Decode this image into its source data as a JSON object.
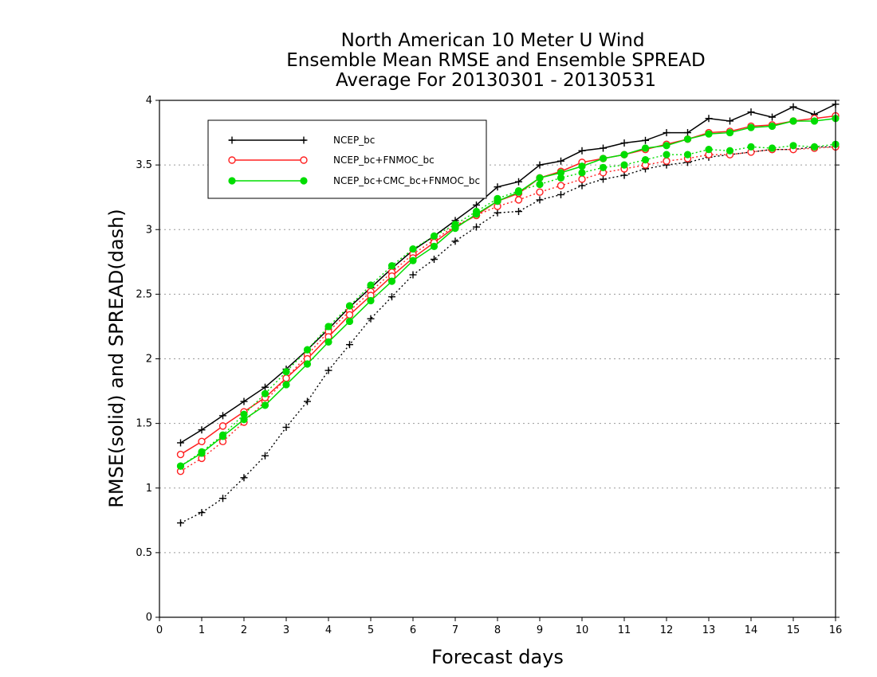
{
  "chart_data": {
    "type": "line",
    "title_lines": [
      "North American 10 Meter U Wind",
      "Ensemble Mean RMSE and Ensemble SPREAD",
      "Average For 20130301 - 20130531"
    ],
    "xlabel": "Forecast days",
    "ylabel": "RMSE(solid) and SPREAD(dash)",
    "xlim": [
      0,
      16
    ],
    "ylim": [
      0,
      4
    ],
    "xticks": [
      "0",
      "1",
      "2",
      "3",
      "4",
      "5",
      "6",
      "7",
      "8",
      "9",
      "10",
      "11",
      "12",
      "13",
      "14",
      "15",
      "16"
    ],
    "yticks": [
      "0",
      "0.5",
      "1",
      "1.5",
      "2",
      "2.5",
      "3",
      "3.5",
      "4"
    ],
    "grid": "horizontal dotted",
    "legend_position": "top-left",
    "x": [
      0.5,
      1,
      1.5,
      2,
      2.5,
      3,
      3.5,
      4,
      4.5,
      5,
      5.5,
      6,
      6.5,
      7,
      7.5,
      8,
      8.5,
      9,
      9.5,
      10,
      10.5,
      11,
      11.5,
      12,
      12.5,
      13,
      13.5,
      14,
      14.5,
      15,
      15.5,
      16
    ],
    "series": [
      {
        "name": "NCEP_bc",
        "color": "#000000",
        "marker": "plus",
        "rmse": [
          1.35,
          1.45,
          1.56,
          1.67,
          1.78,
          1.92,
          2.07,
          2.23,
          2.4,
          2.55,
          2.7,
          2.84,
          2.95,
          3.07,
          3.19,
          3.33,
          3.37,
          3.5,
          3.53,
          3.61,
          3.63,
          3.67,
          3.69,
          3.75,
          3.75,
          3.86,
          3.84,
          3.91,
          3.87,
          3.95,
          3.89,
          3.97
        ],
        "spread": [
          0.73,
          0.81,
          0.92,
          1.08,
          1.25,
          1.47,
          1.67,
          1.91,
          2.11,
          2.31,
          2.48,
          2.65,
          2.77,
          2.91,
          3.02,
          3.13,
          3.14,
          3.23,
          3.27,
          3.34,
          3.39,
          3.42,
          3.47,
          3.5,
          3.52,
          3.56,
          3.58,
          3.6,
          3.62,
          3.62,
          3.64,
          3.64
        ]
      },
      {
        "name": "NCEP_bc+FNMOC_bc",
        "color": "#ff2020",
        "marker": "open-circle",
        "rmse": [
          1.26,
          1.36,
          1.48,
          1.59,
          1.7,
          1.85,
          2.0,
          2.17,
          2.34,
          2.49,
          2.64,
          2.78,
          2.9,
          3.02,
          3.11,
          3.22,
          3.28,
          3.4,
          3.45,
          3.52,
          3.55,
          3.58,
          3.62,
          3.66,
          3.7,
          3.75,
          3.76,
          3.8,
          3.81,
          3.84,
          3.86,
          3.88
        ],
        "spread": [
          1.13,
          1.23,
          1.36,
          1.51,
          1.67,
          1.85,
          2.03,
          2.21,
          2.37,
          2.52,
          2.67,
          2.81,
          2.92,
          3.03,
          3.11,
          3.18,
          3.23,
          3.29,
          3.34,
          3.39,
          3.44,
          3.47,
          3.5,
          3.53,
          3.55,
          3.58,
          3.58,
          3.6,
          3.62,
          3.62,
          3.63,
          3.64
        ]
      },
      {
        "name": "NCEP_bc+CMC_bc+FNMOC_bc",
        "color": "#00dd00",
        "marker": "filled-circle",
        "rmse": [
          1.17,
          1.27,
          1.4,
          1.53,
          1.64,
          1.8,
          1.96,
          2.13,
          2.29,
          2.45,
          2.6,
          2.76,
          2.87,
          3.01,
          3.12,
          3.22,
          3.29,
          3.4,
          3.44,
          3.49,
          3.55,
          3.58,
          3.63,
          3.65,
          3.7,
          3.74,
          3.75,
          3.79,
          3.8,
          3.84,
          3.84,
          3.86
        ],
        "spread": [
          1.17,
          1.28,
          1.41,
          1.57,
          1.73,
          1.9,
          2.07,
          2.25,
          2.41,
          2.57,
          2.72,
          2.85,
          2.95,
          3.04,
          3.14,
          3.24,
          3.3,
          3.35,
          3.4,
          3.44,
          3.48,
          3.5,
          3.54,
          3.58,
          3.58,
          3.62,
          3.61,
          3.64,
          3.63,
          3.65,
          3.64,
          3.66
        ]
      }
    ]
  }
}
